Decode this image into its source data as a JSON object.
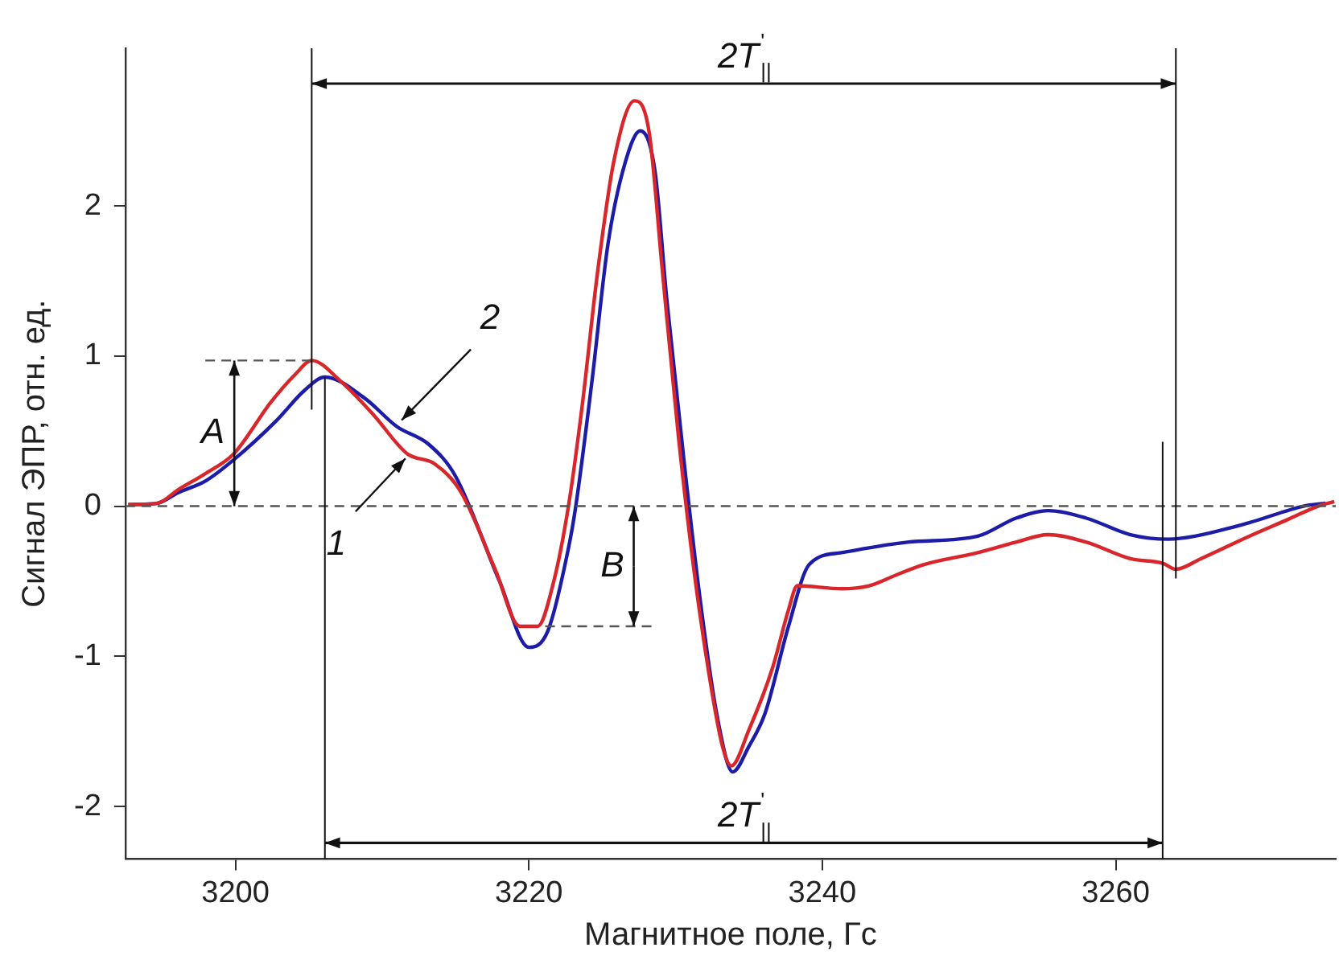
{
  "chart_data": {
    "type": "line",
    "xlabel": "Магнитное поле, Гс",
    "ylabel": "Сигнал ЭПР, отн. ед.",
    "xlim": [
      3192.5,
      3275
    ],
    "xticks": [
      3200,
      3220,
      3240,
      3260
    ],
    "ylim": [
      -2.35,
      3.05
    ],
    "yticks": [
      -2,
      -1,
      0,
      1,
      2
    ],
    "grid": false,
    "legend": false,
    "marker": "none",
    "line_style": "solid",
    "series": [
      {
        "name": "1",
        "color": "#d8262a",
        "x": [
          3192.7,
          3194.7,
          3196.1,
          3198.0,
          3199.9,
          3202.4,
          3204.1,
          3205.2,
          3207.2,
          3209.4,
          3211.7,
          3213.6,
          3215.4,
          3217.7,
          3219.4,
          3220.6,
          3221.7,
          3222.7,
          3223.6,
          3224.7,
          3225.8,
          3227.2,
          3228.2,
          3229.1,
          3230.2,
          3231.3,
          3232.4,
          3233.2,
          3233.8,
          3235.0,
          3236.6,
          3237.7,
          3238.3,
          3241.3,
          3243.2,
          3245.0,
          3246.9,
          3250.6,
          3253.2,
          3255.4,
          3258.0,
          3261.0,
          3263.2,
          3264.1,
          3265.8,
          3269.1,
          3271.7,
          3273.8,
          3274.9
        ],
        "values": [
          0.01,
          0.02,
          0.11,
          0.22,
          0.35,
          0.69,
          0.88,
          0.97,
          0.83,
          0.61,
          0.35,
          0.28,
          0.09,
          -0.42,
          -0.8,
          -0.8,
          -0.5,
          0,
          0.64,
          1.57,
          2.3,
          2.7,
          2.49,
          1.57,
          0.46,
          -0.46,
          -1.19,
          -1.6,
          -1.73,
          -1.49,
          -1.08,
          -0.69,
          -0.53,
          -0.55,
          -0.53,
          -0.46,
          -0.39,
          -0.31,
          -0.24,
          -0.19,
          -0.24,
          -0.35,
          -0.38,
          -0.42,
          -0.35,
          -0.2,
          -0.09,
          0,
          0.03
        ]
      },
      {
        "name": "2",
        "color": "#1c1ca8",
        "x": [
          3192.7,
          3194.7,
          3196.1,
          3198.0,
          3199.9,
          3202.8,
          3204.7,
          3206.1,
          3208.8,
          3211.0,
          3213.2,
          3215.0,
          3218.0,
          3220.0,
          3221.3,
          3222.7,
          3223.2,
          3224.3,
          3225.4,
          3226.6,
          3227.6,
          3228.6,
          3229.4,
          3230.6,
          3231.7,
          3232.8,
          3233.9,
          3235.0,
          3236.1,
          3237.7,
          3239.1,
          3241.3,
          3245.8,
          3250.6,
          3253.2,
          3255.4,
          3258.0,
          3261.0,
          3263.6,
          3265.4,
          3269.1,
          3272.8,
          3274.3
        ],
        "values": [
          0.01,
          0.02,
          0.09,
          0.17,
          0.31,
          0.57,
          0.77,
          0.86,
          0.72,
          0.53,
          0.41,
          0.2,
          -0.5,
          -0.94,
          -0.83,
          -0.28,
          0,
          0.83,
          1.75,
          2.3,
          2.5,
          2.23,
          1.38,
          0.28,
          -0.64,
          -1.38,
          -1.77,
          -1.6,
          -1.38,
          -0.8,
          -0.39,
          -0.31,
          -0.24,
          -0.2,
          -0.08,
          -0.03,
          -0.08,
          -0.19,
          -0.22,
          -0.2,
          -0.11,
          0,
          0.02
        ]
      }
    ],
    "ref_lines": [
      {
        "axis": "y",
        "value": 0,
        "line_style": "dashed",
        "color": "#555555"
      },
      {
        "axis": "y",
        "value": 0.97,
        "label": "A",
        "line_style": "dashed",
        "color": "#555555"
      },
      {
        "axis": "y",
        "value": -0.8,
        "label": "B",
        "line_style": "dashed",
        "color": "#555555"
      },
      {
        "axis": "x",
        "value": 3205.2,
        "line_style": "solid",
        "color": "#111111"
      },
      {
        "axis": "x",
        "value": 3264.1,
        "line_style": "solid",
        "color": "#111111"
      },
      {
        "axis": "x",
        "value": 3206.1,
        "line_style": "solid",
        "color": "#111111"
      },
      {
        "axis": "x",
        "value": 3263.2,
        "line_style": "solid",
        "color": "#111111"
      }
    ],
    "annotations": [
      "2T$^{'}$$_{||}$",
      "2T$^{'}$$_{||}$"
    ]
  }
}
